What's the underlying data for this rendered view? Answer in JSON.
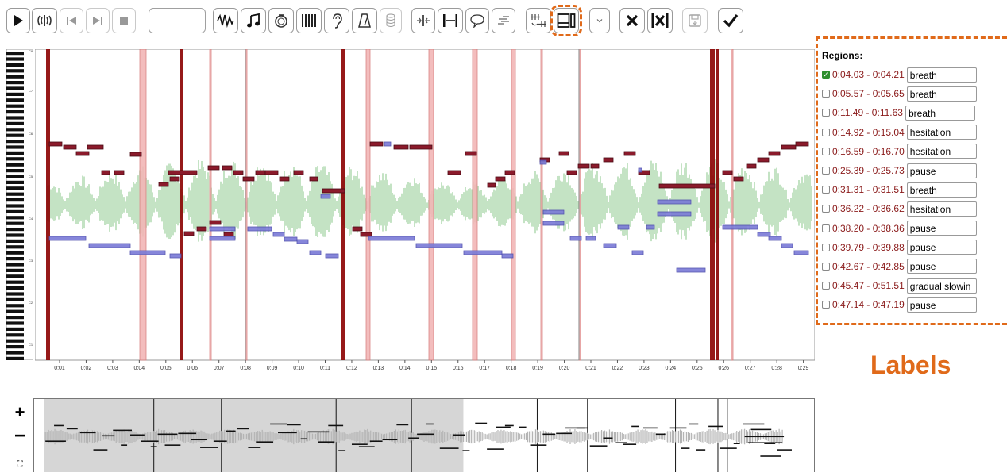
{
  "toolbar": {
    "buttons": [
      {
        "name": "play-icon",
        "disabled": false
      },
      {
        "name": "audio-toggle-icon",
        "disabled": false
      },
      {
        "name": "skip-back-icon",
        "disabled": true
      },
      {
        "name": "skip-forward-icon",
        "disabled": true
      },
      {
        "name": "stop-icon",
        "disabled": true
      },
      {
        "name": "waveform-icon",
        "disabled": false
      },
      {
        "name": "notes-icon",
        "disabled": false
      },
      {
        "name": "metronome-ring-icon",
        "disabled": false
      },
      {
        "name": "bars-icon",
        "disabled": false
      },
      {
        "name": "ear-icon",
        "disabled": false
      },
      {
        "name": "tuner-icon",
        "disabled": false
      },
      {
        "name": "database-icon",
        "disabled": true
      },
      {
        "name": "split-icon",
        "disabled": false
      },
      {
        "name": "range-icon",
        "disabled": false
      },
      {
        "name": "speech-bubble-icon",
        "disabled": false
      },
      {
        "name": "list-icon",
        "disabled": false
      },
      {
        "name": "align-icon",
        "disabled": false
      },
      {
        "name": "regions-layout-icon",
        "disabled": false
      },
      {
        "name": "dropdown-icon",
        "disabled": false
      },
      {
        "name": "delete-icon",
        "disabled": false
      },
      {
        "name": "delete-all-icon",
        "disabled": false
      },
      {
        "name": "save-icon",
        "disabled": true
      },
      {
        "name": "confirm-icon",
        "disabled": false
      }
    ],
    "time_value": ""
  },
  "colors": {
    "region_strong": "#8b0000",
    "region_light": "#f2b6b6",
    "note_red": "#8b1a2b",
    "note_blue": "#7a7ad6",
    "waveform": "#9ed19e",
    "accent": "#e06a1a"
  },
  "octave_labels": [
    "C8",
    "C7",
    "C6",
    "C5",
    "C4",
    "C3",
    "C2",
    "C1"
  ],
  "time_ticks": [
    "0:01",
    "0:02",
    "0:03",
    "0:04",
    "0:05",
    "0:06",
    "0:07",
    "0:08",
    "0:09",
    "0:10",
    "0:11",
    "0:12",
    "0:13",
    "0:14",
    "0:15",
    "0:16",
    "0:17",
    "0:18",
    "0:19",
    "0:20",
    "0:21",
    "0:22",
    "0:23",
    "0:24",
    "0:25",
    "0:26",
    "0:27",
    "0:28",
    "0:29"
  ],
  "regions": {
    "title": "Regions:",
    "items": [
      {
        "time": "0:04.03 - 0:04.21",
        "label": "breath",
        "checked": true
      },
      {
        "time": "0:05.57 - 0:05.65",
        "label": "breath",
        "checked": false
      },
      {
        "time": "0:11.49 - 0:11.63",
        "label": "breath",
        "checked": false
      },
      {
        "time": "0:14.92 - 0:15.04",
        "label": "hesitation",
        "checked": false
      },
      {
        "time": "0:16.59 - 0:16.70",
        "label": "hesitation",
        "checked": false
      },
      {
        "time": "0:25.39 - 0:25.73",
        "label": "pause",
        "checked": false
      },
      {
        "time": "0:31.31 - 0:31.51",
        "label": "breath",
        "checked": false
      },
      {
        "time": "0:36.22 - 0:36.62",
        "label": "hesitation",
        "checked": false
      },
      {
        "time": "0:38.20 - 0:38.36",
        "label": "pause",
        "checked": false
      },
      {
        "time": "0:39.79 - 0:39.88",
        "label": "pause",
        "checked": false
      },
      {
        "time": "0:42.67 - 0:42.85",
        "label": "pause",
        "checked": false
      },
      {
        "time": "0:45.47 - 0:51.51",
        "label": "gradual slowin",
        "checked": false
      },
      {
        "time": "0:47.14 - 0:47.19",
        "label": "pause",
        "checked": false
      }
    ]
  },
  "labels_caption": "Labels",
  "zoom": {
    "in": "+",
    "out": "−",
    "fit": "⛶"
  }
}
